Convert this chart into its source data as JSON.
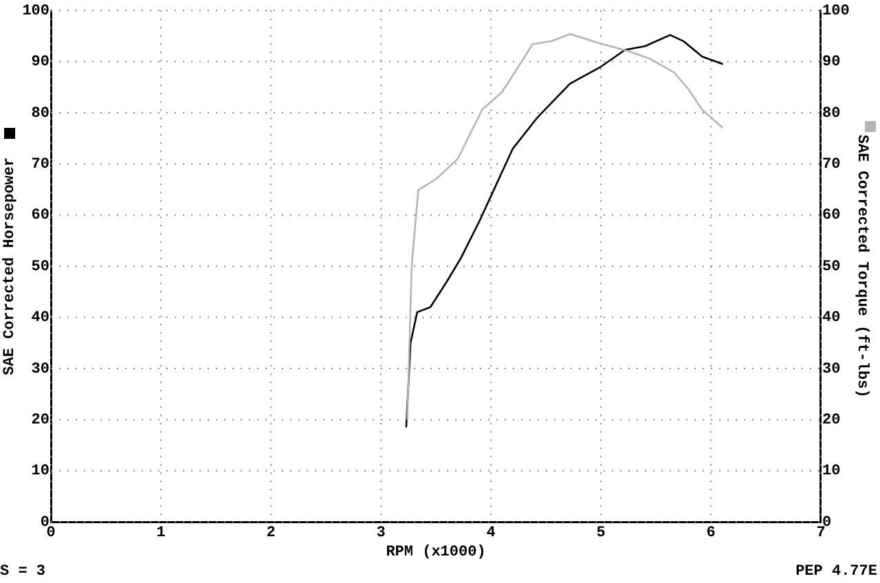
{
  "chart_data": {
    "type": "line",
    "xlabel": "RPM (x1000)",
    "ylabel": "SAE Corrected Horsepower",
    "y2label": "SAE Corrected Torque (ft-lbs)",
    "xlim": [
      0,
      7
    ],
    "xticks": [
      0,
      1,
      2,
      3,
      4,
      5,
      6,
      7
    ],
    "ylim": [
      0,
      100
    ],
    "yticks": [
      0,
      10,
      20,
      30,
      40,
      50,
      60,
      70,
      80,
      90,
      100
    ],
    "y2lim": [
      0,
      100
    ],
    "y2ticks": [
      0,
      10,
      20,
      30,
      40,
      50,
      60,
      70,
      80,
      90,
      100
    ],
    "grid": true,
    "legend": false,
    "marker": "none",
    "line_style": "solid",
    "annotations": [
      "S = 3",
      "PEP 4.77E"
    ],
    "series": [
      {
        "color": "#000000",
        "x": [
          3.23,
          3.27,
          3.33,
          3.45,
          3.6,
          3.73,
          3.9,
          4.05,
          4.2,
          4.42,
          4.72,
          5.0,
          5.22,
          5.4,
          5.63,
          5.75,
          5.92,
          6.11
        ],
        "values": [
          18.5,
          35,
          41,
          42,
          47,
          51.7,
          59,
          66,
          73,
          79,
          85.7,
          89,
          92.3,
          93,
          95.2,
          94,
          91,
          89.5
        ]
      },
      {
        "color": "#b4b4b4",
        "axis": "y2",
        "x": [
          3.24,
          3.28,
          3.34,
          3.5,
          3.7,
          3.92,
          4.1,
          4.25,
          4.38,
          4.55,
          4.72,
          5.0,
          5.26,
          5.45,
          5.67,
          5.8,
          5.92,
          6.11
        ],
        "values": [
          20,
          50,
          64.9,
          67,
          71,
          80.6,
          84,
          89,
          93.4,
          94,
          95.4,
          93.5,
          92,
          90.5,
          87.8,
          84.5,
          80.6,
          77
        ]
      }
    ]
  }
}
